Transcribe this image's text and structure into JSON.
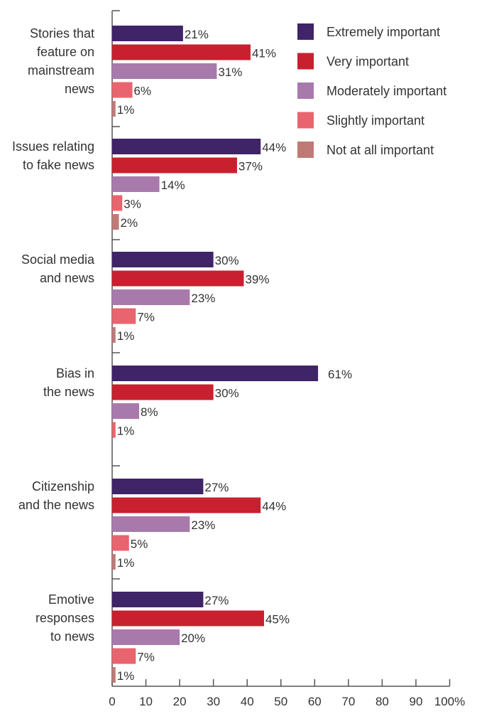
{
  "chart_data": {
    "type": "bar",
    "orientation": "horizontal",
    "categories": [
      [
        "Stories that",
        "feature on",
        "mainstream",
        "news"
      ],
      [
        "Issues relating",
        "to fake news"
      ],
      [
        "Social media",
        "and news"
      ],
      [
        "Bias in",
        "the news"
      ],
      [
        "Citizenship",
        "and the news"
      ],
      [
        "Emotive",
        "responses",
        "to news"
      ]
    ],
    "series": [
      {
        "name": "Extremely important",
        "color": "#3f2468",
        "values": [
          21,
          44,
          30,
          61,
          27,
          27
        ],
        "labels": [
          "21%",
          "44%",
          "30%",
          "61%",
          "27%",
          "27%"
        ]
      },
      {
        "name": "Very important",
        "color": "#c8202f",
        "values": [
          41,
          37,
          39,
          30,
          44,
          45
        ],
        "labels": [
          "41%",
          "37%",
          "39%",
          "30%",
          "44%",
          "45%"
        ]
      },
      {
        "name": "Moderately important",
        "color": "#a87aac",
        "values": [
          31,
          14,
          23,
          8,
          23,
          20
        ],
        "labels": [
          "31%",
          "14%",
          "23%",
          "8%",
          "23%",
          "20%"
        ]
      },
      {
        "name": "Slightly important",
        "color": "#e8646e",
        "values": [
          6,
          3,
          7,
          1,
          5,
          7
        ],
        "labels": [
          "6%",
          "3%",
          "7%",
          "1%",
          "5%",
          "7%"
        ]
      },
      {
        "name": "Not at all important",
        "color": "#c07a76",
        "values": [
          1,
          2,
          1,
          null,
          1,
          1
        ],
        "labels": [
          "1%",
          "2%",
          "1%",
          "",
          "1%",
          "1%"
        ]
      }
    ],
    "x_ticks": [
      "0",
      "10",
      "20",
      "30",
      "40",
      "50",
      "60",
      "70",
      "80",
      "90",
      "100%"
    ],
    "xlim": [
      0,
      100
    ],
    "grid": false,
    "legend_position": "top-right"
  }
}
